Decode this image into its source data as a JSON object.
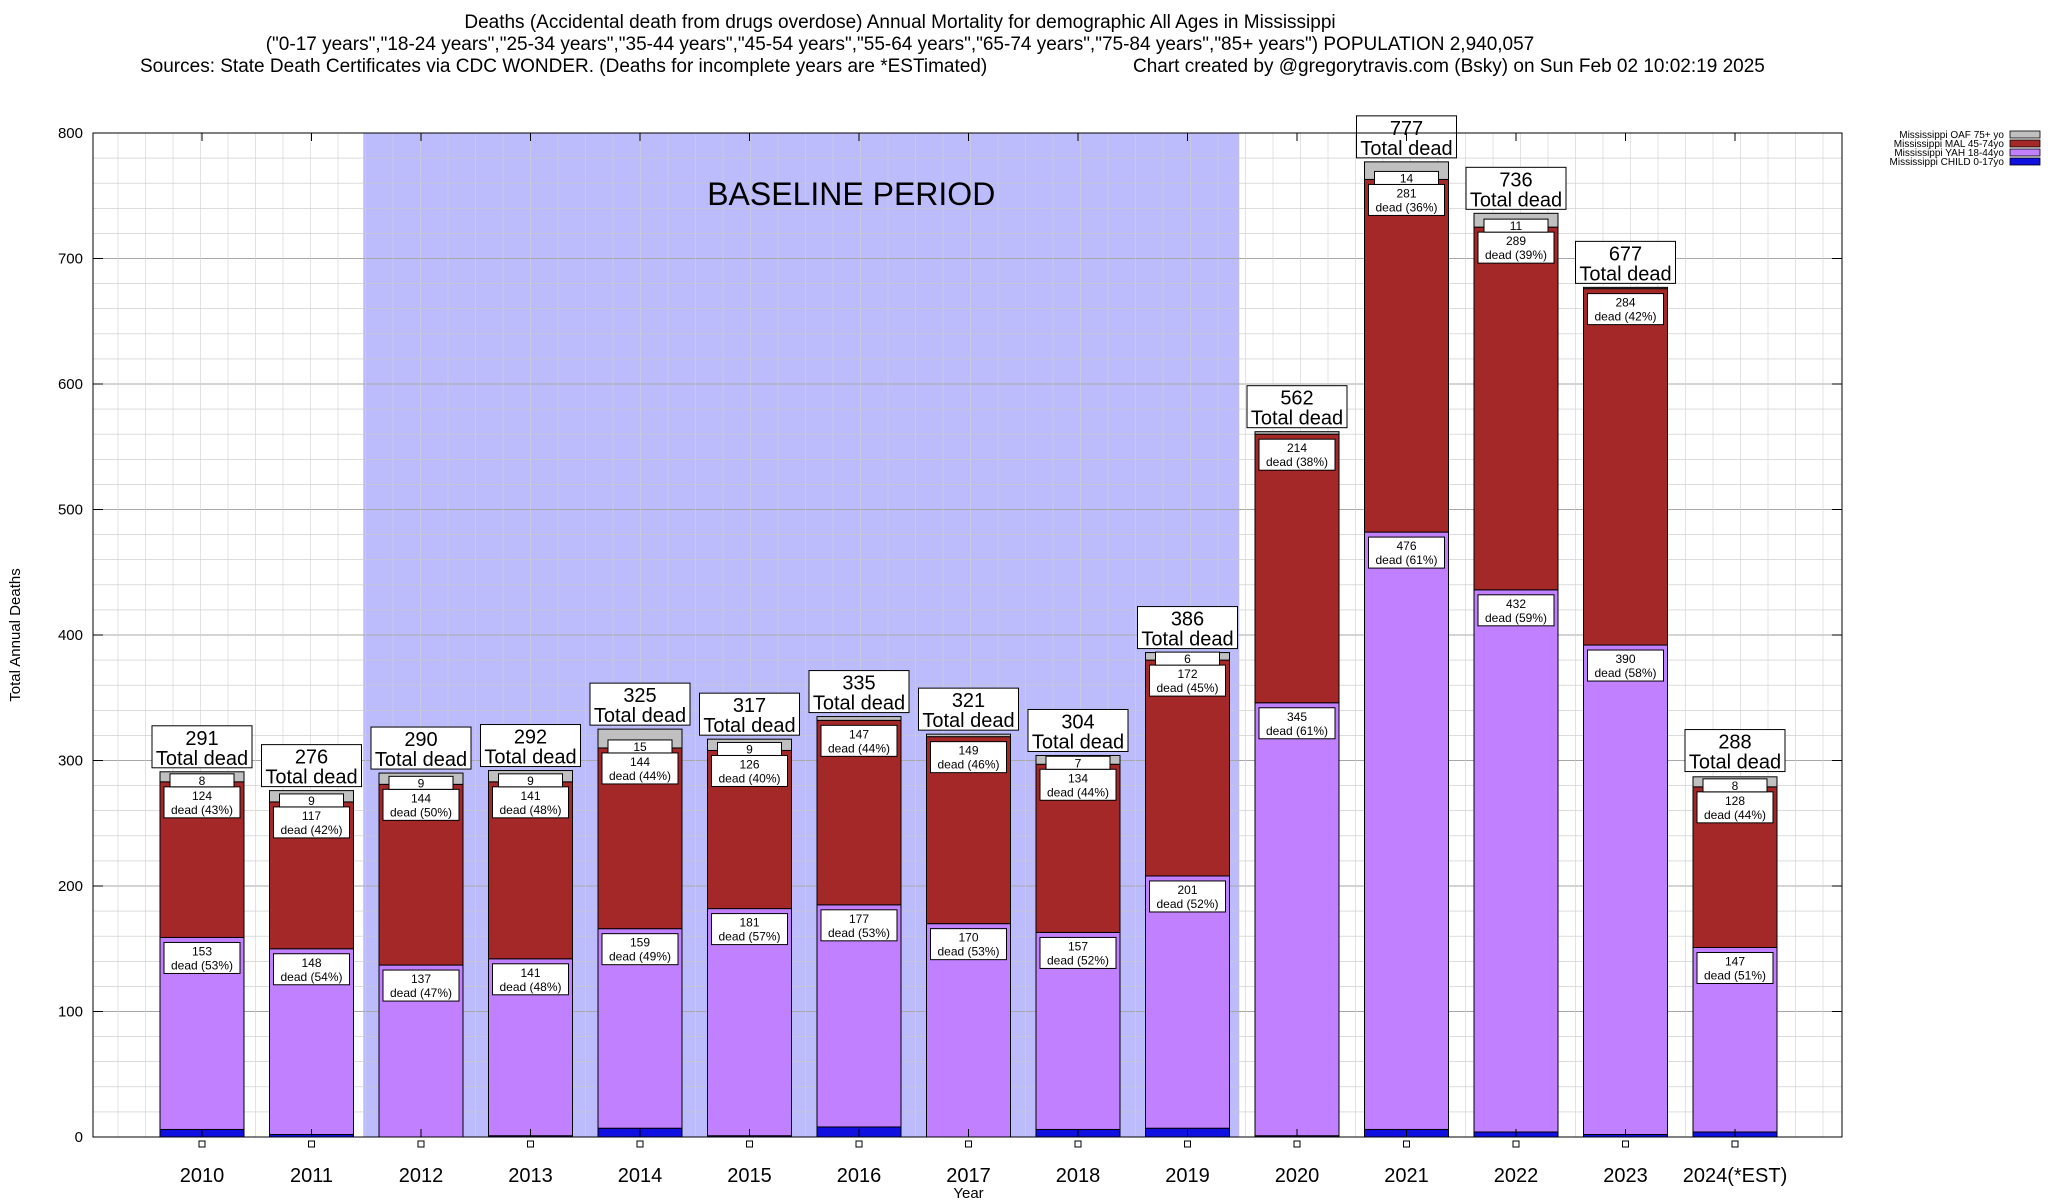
{
  "title": "Deaths (Accidental death from drugs overdose) Annual Mortality for demographic All Ages in Mississippi",
  "subtitle": "(\"0-17 years\",\"18-24 years\",\"25-34 years\",\"35-44 years\",\"45-54 years\",\"55-64 years\",\"65-74 years\",\"75-84 years\",\"85+ years\") POPULATION 2,940,057",
  "sources": "Sources: State Death Certificates via CDC WONDER. (Deaths for incomplete years are *ESTimated)",
  "credit": "Chart created by @gregorytravis.com (Bsky) on Sun Feb 02 10:02:19 2025",
  "chart_data": {
    "type": "bar",
    "stacked": true,
    "xlabel": "Year",
    "ylabel": "Total Annual Deaths",
    "ylim": [
      0,
      800
    ],
    "yticks": [
      0,
      100,
      200,
      300,
      400,
      500,
      600,
      700,
      800
    ],
    "grid": true,
    "legend_position": "top-right, outside plot",
    "categories": [
      "2010",
      "2011",
      "2012",
      "2013",
      "2014",
      "2015",
      "2016",
      "2017",
      "2018",
      "2019",
      "2020",
      "2021",
      "2022",
      "2023",
      "2024(*EST)"
    ],
    "baseline_annotation": {
      "text": "BASELINE PERIOD",
      "from": "2012",
      "to": "2019",
      "color": "#bcbcfc"
    },
    "series": [
      {
        "name": "Mississippi CHILD 0-17yo",
        "color": "#1010e0",
        "values": [
          6,
          2,
          0,
          1,
          7,
          1,
          8,
          0,
          6,
          7,
          1,
          6,
          4,
          2,
          4
        ]
      },
      {
        "name": "Mississippi YAH 18-44yo",
        "color": "#c080ff",
        "values": [
          153,
          148,
          137,
          141,
          159,
          181,
          177,
          170,
          157,
          201,
          345,
          476,
          432,
          390,
          147
        ]
      },
      {
        "name": "Mississippi MAL 45-74yo",
        "color": "#a52828",
        "values": [
          124,
          117,
          144,
          141,
          144,
          126,
          147,
          149,
          134,
          172,
          214,
          281,
          289,
          284,
          128
        ]
      },
      {
        "name": "Mississippi OAF 75+ yo",
        "color": "#c0c0c0",
        "values": [
          8,
          9,
          9,
          9,
          15,
          9,
          3,
          2,
          7,
          6,
          2,
          14,
          11,
          1,
          8
        ]
      }
    ],
    "totals": [
      291,
      276,
      290,
      292,
      325,
      317,
      335,
      321,
      304,
      386,
      562,
      777,
      736,
      677,
      288
    ],
    "total_suffix": "Total dead",
    "yah_labels": [
      "dead (53%)",
      "dead (54%)",
      "dead (47%)",
      "dead (48%)",
      "dead (49%)",
      "dead (57%)",
      "dead (53%)",
      "dead (53%)",
      "dead (52%)",
      "dead (52%)",
      "dead (61%)",
      "dead (61%)",
      "dead (59%)",
      "dead (58%)",
      "dead (51%)"
    ],
    "mal_labels": [
      "dead (43%)",
      "dead (42%)",
      "dead (50%)",
      "dead (48%)",
      "dead (44%)",
      "dead (40%)",
      "dead (44%)",
      "dead (46%)",
      "dead (44%)",
      "dead (45%)",
      "dead (38%)",
      "dead (36%)",
      "dead (39%)",
      "dead (42%)",
      "dead (44%)"
    ],
    "oaf_labels_shown": [
      true,
      true,
      true,
      true,
      true,
      true,
      false,
      false,
      true,
      true,
      false,
      true,
      true,
      false,
      true
    ]
  }
}
